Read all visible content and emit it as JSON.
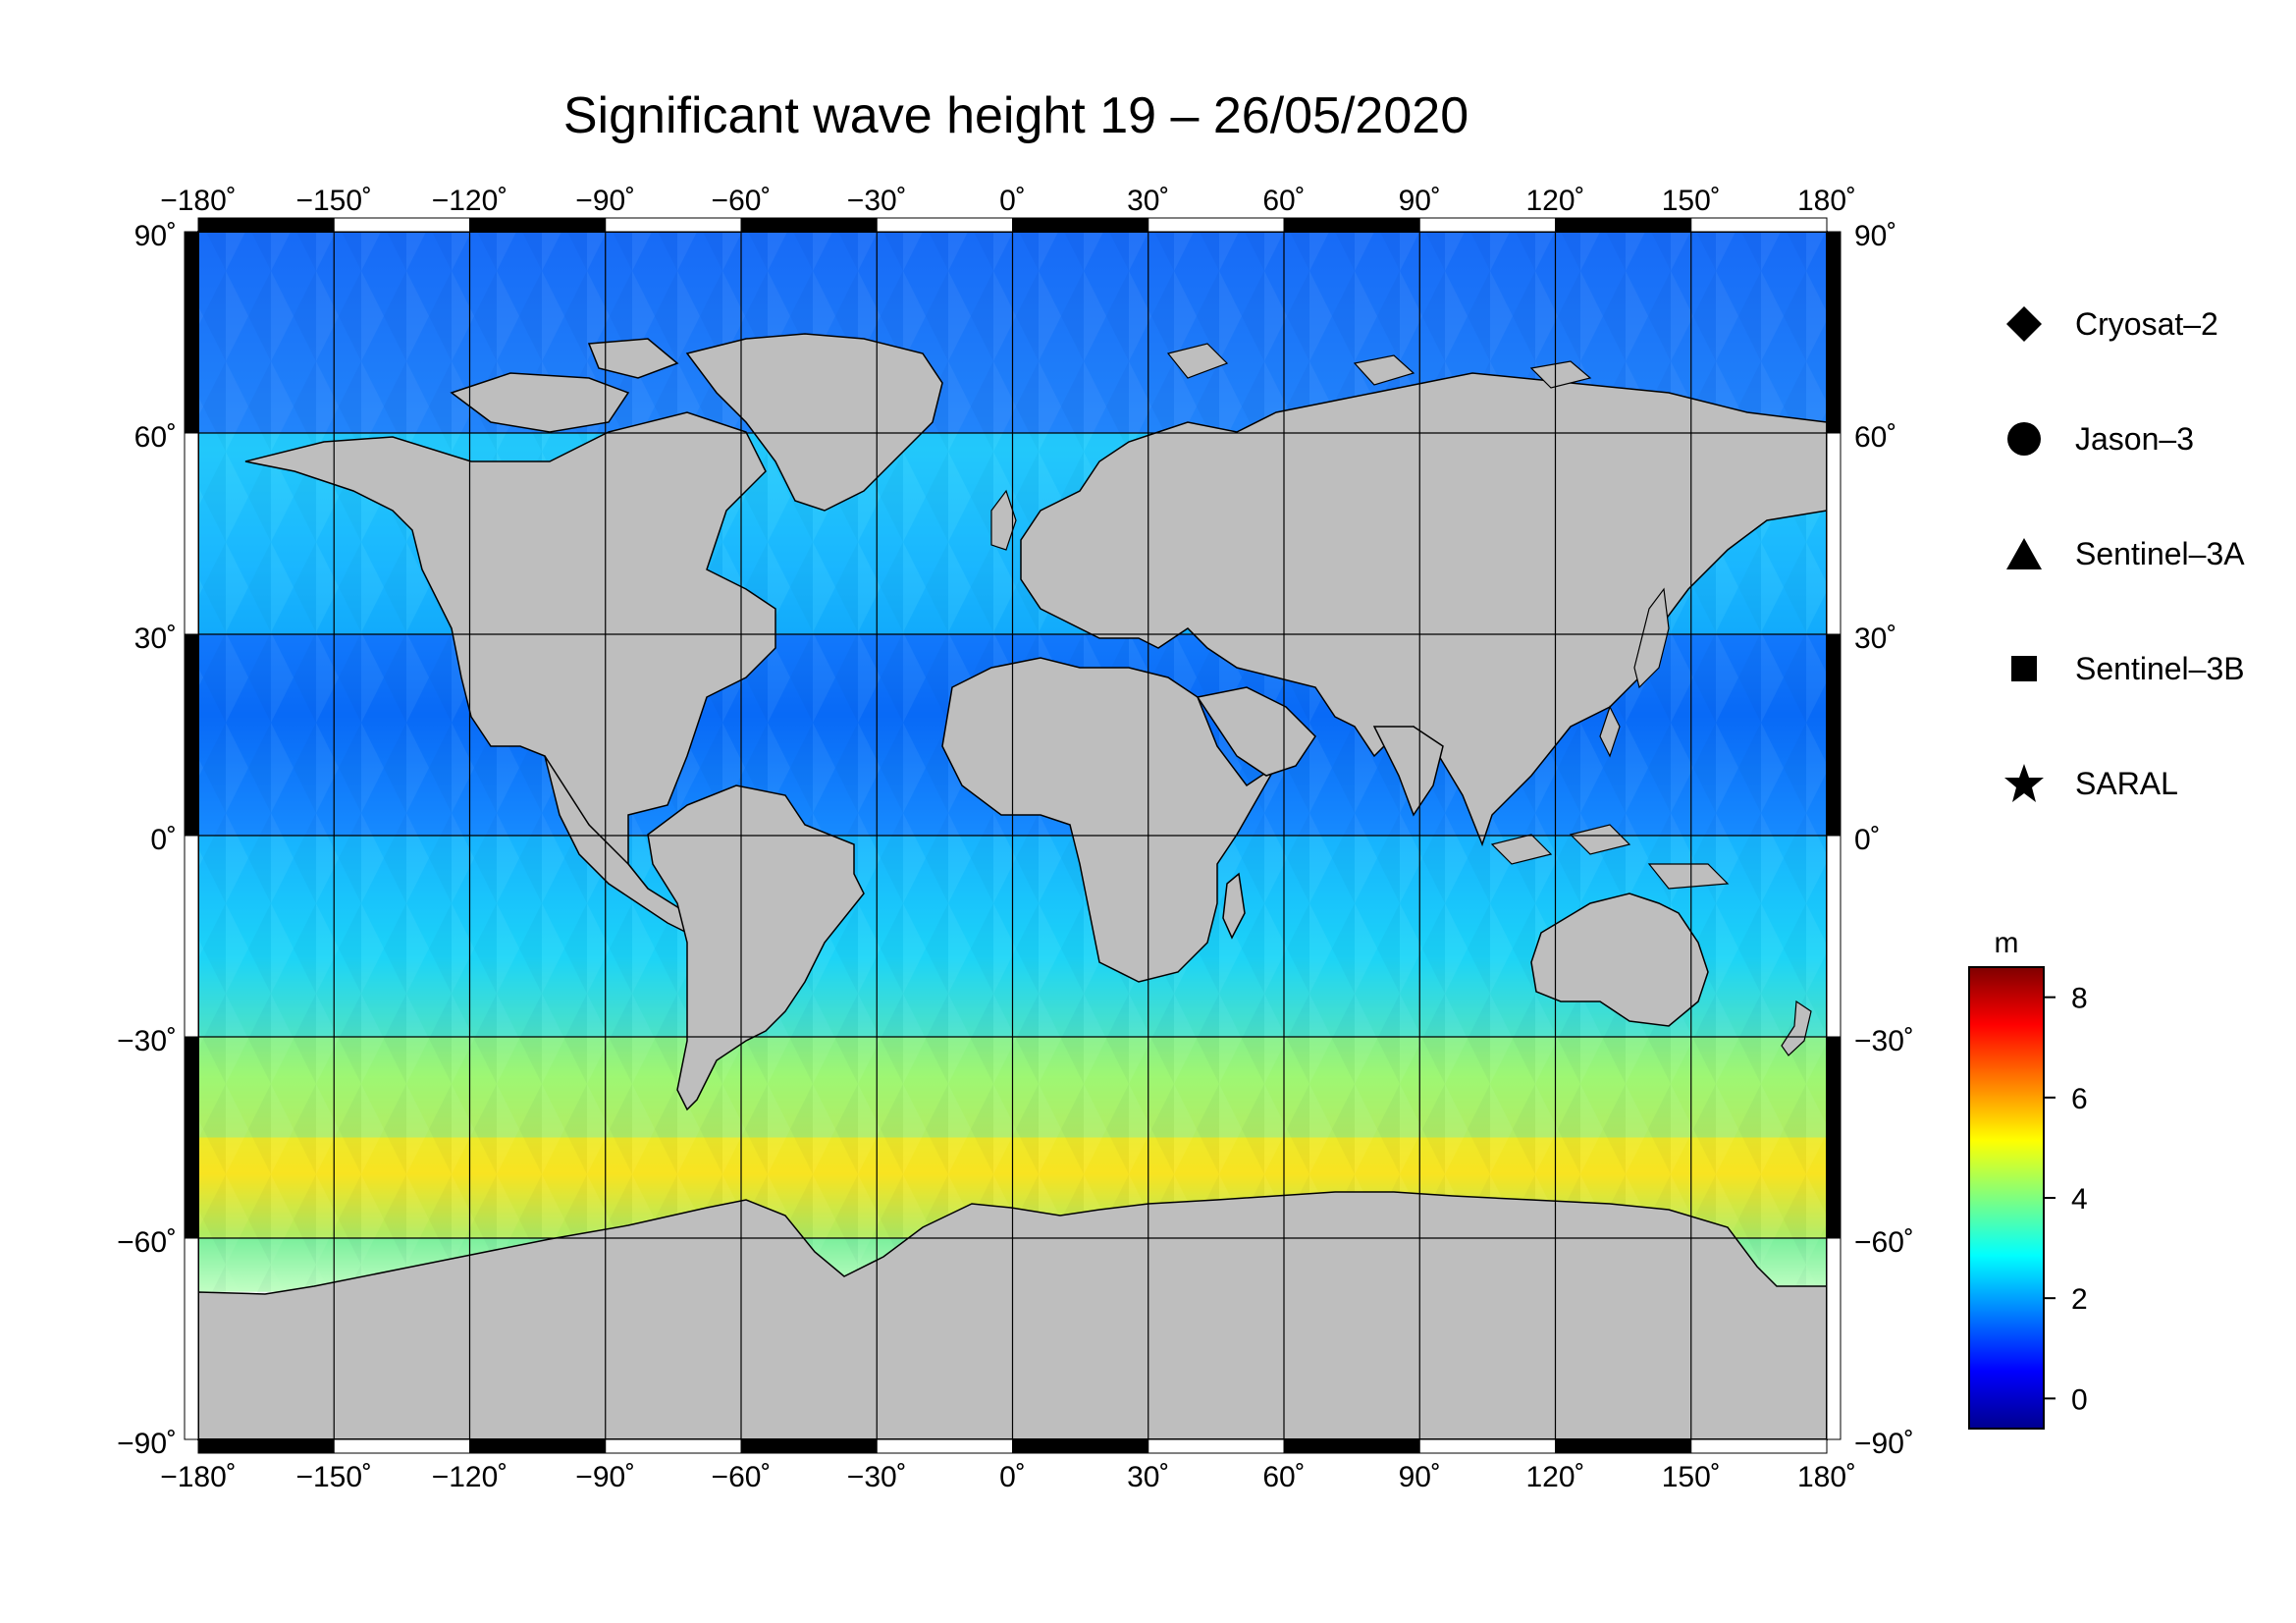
{
  "title": "Significant wave height 19 – 26/05/2020",
  "map": {
    "projection": "equirectangular",
    "lon_ticks": [
      "−180˚",
      "−150˚",
      "−120˚",
      "−90˚",
      "−60˚",
      "−30˚",
      "0˚",
      "30˚",
      "60˚",
      "90˚",
      "120˚",
      "150˚",
      "180˚"
    ],
    "lat_ticks": [
      "90˚",
      "60˚",
      "30˚",
      "0˚",
      "−30˚",
      "−60˚",
      "−90˚"
    ],
    "land_color": "#bebebe",
    "ice_color": "#ffffff"
  },
  "legend": {
    "items": [
      {
        "label": "Cryosat–2",
        "icon": "diamond-icon"
      },
      {
        "label": "Jason–3",
        "icon": "circle-icon"
      },
      {
        "label": "Sentinel–3A",
        "icon": "triangle-icon"
      },
      {
        "label": "Sentinel–3B",
        "icon": "square-icon"
      },
      {
        "label": "SARAL",
        "icon": "star-icon"
      }
    ]
  },
  "colorbar": {
    "unit": "m",
    "ticks": [
      "0",
      "2",
      "4",
      "6",
      "8"
    ],
    "range": [
      -0.6,
      8.6
    ],
    "colors": [
      "#00008f",
      "#0000ff",
      "#007fff",
      "#00ffff",
      "#7fff7f",
      "#ffff00",
      "#ff7f00",
      "#ff0000",
      "#7f0000"
    ]
  },
  "chart_data": {
    "type": "heatmap",
    "title": "Significant wave height 19 – 26/05/2020",
    "variable": "Significant wave height",
    "unit": "m",
    "color_range": [
      -0.6,
      8.6
    ],
    "x_range": [
      -180,
      180
    ],
    "y_range": [
      -90,
      90
    ],
    "zonal_mean_swh": [
      {
        "lat_band": [
          60,
          90
        ],
        "swh": 1.5
      },
      {
        "lat_band": [
          30,
          60
        ],
        "swh": 2.8
      },
      {
        "lat_band": [
          0,
          30
        ],
        "swh": 1.8
      },
      {
        "lat_band": [
          -30,
          0
        ],
        "swh": 2.6
      },
      {
        "lat_band": [
          -45,
          -30
        ],
        "swh": 4.0
      },
      {
        "lat_band": [
          -60,
          -45
        ],
        "swh": 5.2
      },
      {
        "lat_band": [
          -68,
          -60
        ],
        "swh": 4.0
      }
    ]
  }
}
